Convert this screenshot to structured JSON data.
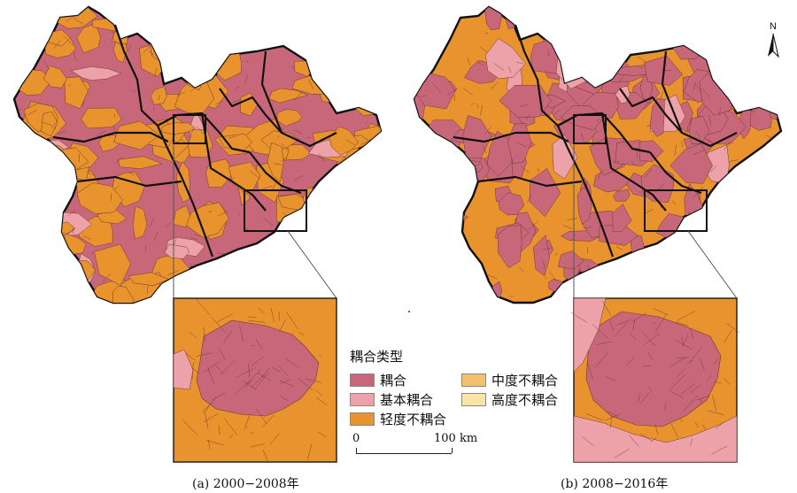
{
  "panels": [
    {
      "id": "a",
      "caption": "(a) 2000−2008年",
      "dominant_type": "耦合",
      "inset_core_type": "耦合",
      "inset_ring_type": "轻度不耦合"
    },
    {
      "id": "b",
      "caption": "(b) 2008−2016年",
      "dominant_type": "轻度不耦合",
      "inset_core_type": "耦合",
      "inset_ring_type": "轻度不耦合"
    }
  ],
  "north_arrow": {
    "label": "N"
  },
  "legend": {
    "title": "耦合类型",
    "items": [
      {
        "label": "耦合",
        "color": "#c9677a"
      },
      {
        "label": "基本耦合",
        "color": "#eca2a8"
      },
      {
        "label": "轻度不耦合",
        "color": "#e8932e"
      },
      {
        "label": "中度不耦合",
        "color": "#f1c16e"
      },
      {
        "label": "高度不耦合",
        "color": "#f8e4a6"
      }
    ]
  },
  "scale_bar": {
    "start_label": "0",
    "end_label": "100 km"
  },
  "colors": {
    "boundary": "#111111",
    "inner_boundary": "#6b3b2c",
    "inset_line": "#555555"
  }
}
